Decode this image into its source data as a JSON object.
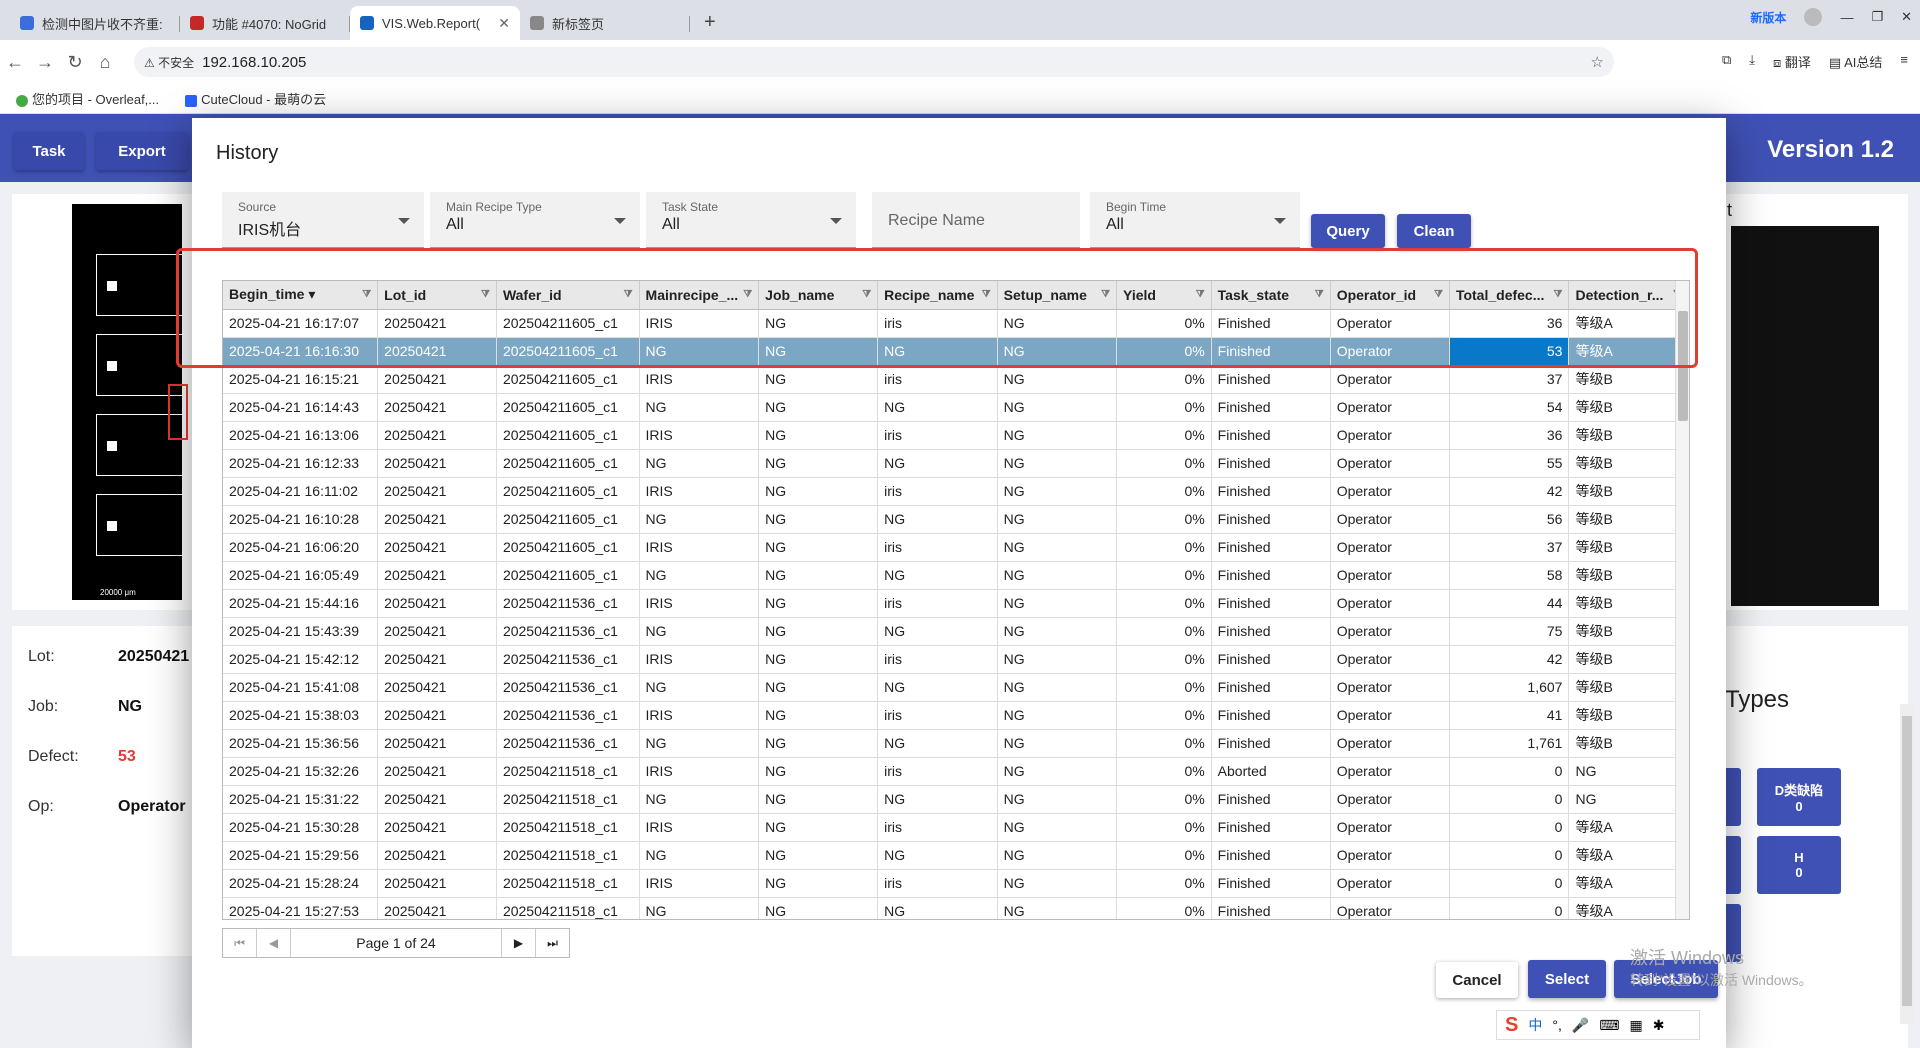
{
  "browser": {
    "tabs": [
      {
        "label": "检测中图片收不齐重:",
        "active": false,
        "color": "#3b6fd8"
      },
      {
        "label": "功能 #4070: NoGrid",
        "active": false,
        "color": "#c62828"
      },
      {
        "label": "VIS.Web.Report(",
        "active": true,
        "color": "#1565c0"
      },
      {
        "label": "新标签页",
        "active": false,
        "color": "#888888"
      }
    ],
    "new_version_label": "新版本",
    "address_warning": "不安全",
    "address": "192.168.10.205",
    "translate_label": "翻译",
    "ai_label": "AI总结",
    "bookmarks": [
      "您的项目 - Overleaf,...",
      "CuteCloud - 最萌の云"
    ]
  },
  "app": {
    "task_button": "Task",
    "export_button": "Export",
    "version": "Version 1.2",
    "scale_label": "20000 μm",
    "info": [
      {
        "label": "Lot:",
        "value": "20250421"
      },
      {
        "label": "Job:",
        "value": "NG"
      },
      {
        "label": "Defect:",
        "value": "53"
      },
      {
        "label": "Op:",
        "value": "Operator"
      }
    ],
    "types_title": "Types",
    "type_buttons": [
      {
        "label": "D类缺陷",
        "count": "0"
      },
      {
        "label": "H",
        "count": "0"
      }
    ],
    "right_title_fragment": "t"
  },
  "dialog": {
    "title": "History",
    "filters": {
      "source": {
        "label": "Source",
        "value": "IRIS机台"
      },
      "main_recipe_type": {
        "label": "Main Recipe Type",
        "value": "All"
      },
      "task_state": {
        "label": "Task State",
        "value": "All"
      },
      "recipe_name": {
        "placeholder": "Recipe Name"
      },
      "begin_time": {
        "label": "Begin Time",
        "value": "All"
      }
    },
    "query_button": "Query",
    "clean_button": "Clean",
    "columns": [
      "Begin_time ▾",
      "Lot_id",
      "Wafer_id",
      "Mainrecipe_...",
      "Job_name",
      "Recipe_name",
      "Setup_name",
      "Yield",
      "Task_state",
      "Operator_id",
      "Total_defec...",
      "Detection_r..."
    ],
    "rows": [
      [
        "2025-04-21 16:17:07",
        "20250421",
        "202504211605_c1",
        "IRIS",
        "NG",
        "iris",
        "NG",
        "0%",
        "Finished",
        "Operator",
        "36",
        "等级A"
      ],
      [
        "2025-04-21 16:16:30",
        "20250421",
        "202504211605_c1",
        "NG",
        "NG",
        "NG",
        "NG",
        "0%",
        "Finished",
        "Operator",
        "53",
        "等级A"
      ],
      [
        "2025-04-21 16:15:21",
        "20250421",
        "202504211605_c1",
        "IRIS",
        "NG",
        "iris",
        "NG",
        "0%",
        "Finished",
        "Operator",
        "37",
        "等级B"
      ],
      [
        "2025-04-21 16:14:43",
        "20250421",
        "202504211605_c1",
        "NG",
        "NG",
        "NG",
        "NG",
        "0%",
        "Finished",
        "Operator",
        "54",
        "等级B"
      ],
      [
        "2025-04-21 16:13:06",
        "20250421",
        "202504211605_c1",
        "IRIS",
        "NG",
        "iris",
        "NG",
        "0%",
        "Finished",
        "Operator",
        "36",
        "等级B"
      ],
      [
        "2025-04-21 16:12:33",
        "20250421",
        "202504211605_c1",
        "NG",
        "NG",
        "NG",
        "NG",
        "0%",
        "Finished",
        "Operator",
        "55",
        "等级B"
      ],
      [
        "2025-04-21 16:11:02",
        "20250421",
        "202504211605_c1",
        "IRIS",
        "NG",
        "iris",
        "NG",
        "0%",
        "Finished",
        "Operator",
        "42",
        "等级B"
      ],
      [
        "2025-04-21 16:10:28",
        "20250421",
        "202504211605_c1",
        "NG",
        "NG",
        "NG",
        "NG",
        "0%",
        "Finished",
        "Operator",
        "56",
        "等级B"
      ],
      [
        "2025-04-21 16:06:20",
        "20250421",
        "202504211605_c1",
        "IRIS",
        "NG",
        "iris",
        "NG",
        "0%",
        "Finished",
        "Operator",
        "37",
        "等级B"
      ],
      [
        "2025-04-21 16:05:49",
        "20250421",
        "202504211605_c1",
        "NG",
        "NG",
        "NG",
        "NG",
        "0%",
        "Finished",
        "Operator",
        "58",
        "等级B"
      ],
      [
        "2025-04-21 15:44:16",
        "20250421",
        "202504211536_c1",
        "IRIS",
        "NG",
        "iris",
        "NG",
        "0%",
        "Finished",
        "Operator",
        "44",
        "等级B"
      ],
      [
        "2025-04-21 15:43:39",
        "20250421",
        "202504211536_c1",
        "NG",
        "NG",
        "NG",
        "NG",
        "0%",
        "Finished",
        "Operator",
        "75",
        "等级B"
      ],
      [
        "2025-04-21 15:42:12",
        "20250421",
        "202504211536_c1",
        "IRIS",
        "NG",
        "iris",
        "NG",
        "0%",
        "Finished",
        "Operator",
        "42",
        "等级B"
      ],
      [
        "2025-04-21 15:41:08",
        "20250421",
        "202504211536_c1",
        "NG",
        "NG",
        "NG",
        "NG",
        "0%",
        "Finished",
        "Operator",
        "1,607",
        "等级B"
      ],
      [
        "2025-04-21 15:38:03",
        "20250421",
        "202504211536_c1",
        "IRIS",
        "NG",
        "iris",
        "NG",
        "0%",
        "Finished",
        "Operator",
        "41",
        "等级B"
      ],
      [
        "2025-04-21 15:36:56",
        "20250421",
        "202504211536_c1",
        "NG",
        "NG",
        "NG",
        "NG",
        "0%",
        "Finished",
        "Operator",
        "1,761",
        "等级B"
      ],
      [
        "2025-04-21 15:32:26",
        "20250421",
        "202504211518_c1",
        "IRIS",
        "NG",
        "iris",
        "NG",
        "0%",
        "Aborted",
        "Operator",
        "0",
        "NG"
      ],
      [
        "2025-04-21 15:31:22",
        "20250421",
        "202504211518_c1",
        "NG",
        "NG",
        "NG",
        "NG",
        "0%",
        "Finished",
        "Operator",
        "0",
        "NG"
      ],
      [
        "2025-04-21 15:30:28",
        "20250421",
        "202504211518_c1",
        "IRIS",
        "NG",
        "iris",
        "NG",
        "0%",
        "Finished",
        "Operator",
        "0",
        "等级A"
      ],
      [
        "2025-04-21 15:29:56",
        "20250421",
        "202504211518_c1",
        "NG",
        "NG",
        "NG",
        "NG",
        "0%",
        "Finished",
        "Operator",
        "0",
        "等级A"
      ],
      [
        "2025-04-21 15:28:24",
        "20250421",
        "202504211518_c1",
        "IRIS",
        "NG",
        "iris",
        "NG",
        "0%",
        "Finished",
        "Operator",
        "0",
        "等级A"
      ],
      [
        "2025-04-21 15:27:53",
        "20250421",
        "202504211518_c1",
        "NG",
        "NG",
        "NG",
        "NG",
        "0%",
        "Finished",
        "Operator",
        "0",
        "等级A"
      ]
    ],
    "selected_row": 1,
    "pager_text": "Page 1 of 24",
    "cancel_button": "Cancel",
    "select_button": "Select",
    "selectjob_button": "SelectJob"
  },
  "overlay": {
    "activate_windows": "激活 Windows",
    "activate_hint": "转到\"设置\"以激活 Windows。",
    "ime_label": "中"
  },
  "colors": {
    "primary": "#3f51b5",
    "selected_row": "#7ba7c4",
    "highlight_cell": "#0a78c8",
    "annotation": "#e03c31",
    "defect_red": "#e53935"
  }
}
